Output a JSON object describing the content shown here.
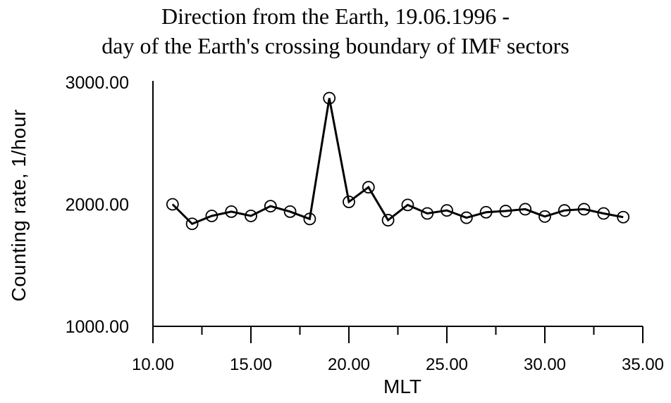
{
  "title": {
    "line1": "Direction from the Earth, 19.06.1996 -",
    "line2": "day of the Earth's crossing boundary of IMF sectors"
  },
  "chart_data": {
    "type": "line",
    "title": "Direction from the Earth, 19.06.1996 - day of the Earth's crossing boundary of IMF sectors",
    "xlabel": "MLT",
    "ylabel": "Counting rate, 1/hour",
    "x": [
      11,
      12,
      13,
      14,
      15,
      16,
      17,
      18,
      19,
      20,
      21,
      22,
      23,
      24,
      25,
      26,
      27,
      28,
      29,
      30,
      31,
      32,
      33,
      34
    ],
    "values": [
      2000,
      1840,
      1905,
      1940,
      1905,
      1985,
      1940,
      1880,
      2870,
      2020,
      2140,
      1870,
      1995,
      1925,
      1950,
      1890,
      1935,
      1945,
      1960,
      1900,
      1950,
      1960,
      1925,
      1895
    ],
    "xlim": [
      10,
      35
    ],
    "ylim": [
      1000,
      3000
    ],
    "x_ticks_major": [
      10,
      15,
      20,
      25,
      30,
      35
    ],
    "x_tick_labels": [
      "10.00",
      "15.00",
      "20.00",
      "25.00",
      "30.00",
      "35.00"
    ],
    "x_ticks_minor": [
      12.5,
      17.5,
      22.5,
      27.5,
      32.5
    ],
    "y_ticks": [
      1000,
      2000,
      3000
    ],
    "y_tick_labels": [
      "1000.00",
      "2000.00",
      "3000.00"
    ],
    "marker": "open-circle",
    "grid": false,
    "legend": "none",
    "line_color": "#000000",
    "marker_color": "#000000",
    "background_color": "#ffffff"
  }
}
